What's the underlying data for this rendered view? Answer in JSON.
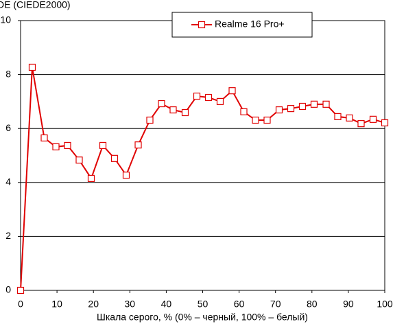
{
  "chart_data": {
    "type": "line",
    "y_label": "DE (CIEDE2000)",
    "x_label": "Шкала серого, % (0% – черный, 100% – белый)",
    "x": [
      0,
      3.2,
      6.5,
      9.7,
      12.9,
      16.1,
      19.4,
      22.6,
      25.8,
      29.0,
      32.3,
      35.5,
      38.7,
      41.9,
      45.2,
      48.4,
      51.6,
      54.8,
      58.1,
      61.3,
      64.5,
      67.7,
      71.0,
      74.2,
      77.4,
      80.6,
      83.9,
      87.1,
      90.3,
      93.5,
      96.8,
      100
    ],
    "series": [
      {
        "name": "Realme 16 Pro+",
        "color": "#e00000",
        "values": [
          0,
          8.27,
          5.65,
          5.32,
          5.37,
          4.83,
          4.15,
          5.37,
          4.89,
          4.27,
          5.39,
          6.31,
          6.92,
          6.69,
          6.59,
          7.2,
          7.15,
          7.0,
          7.4,
          6.62,
          6.31,
          6.31,
          6.69,
          6.74,
          6.82,
          6.9,
          6.9,
          6.44,
          6.39,
          6.18,
          6.34,
          6.21
        ]
      }
    ],
    "xlim": [
      0,
      100
    ],
    "xticks": [
      0,
      10,
      20,
      30,
      40,
      50,
      60,
      70,
      80,
      90,
      100
    ],
    "ylim": [
      0,
      10
    ],
    "yticks": [
      0,
      2,
      4,
      6,
      8,
      10
    ],
    "grid": true,
    "legend": "top"
  }
}
